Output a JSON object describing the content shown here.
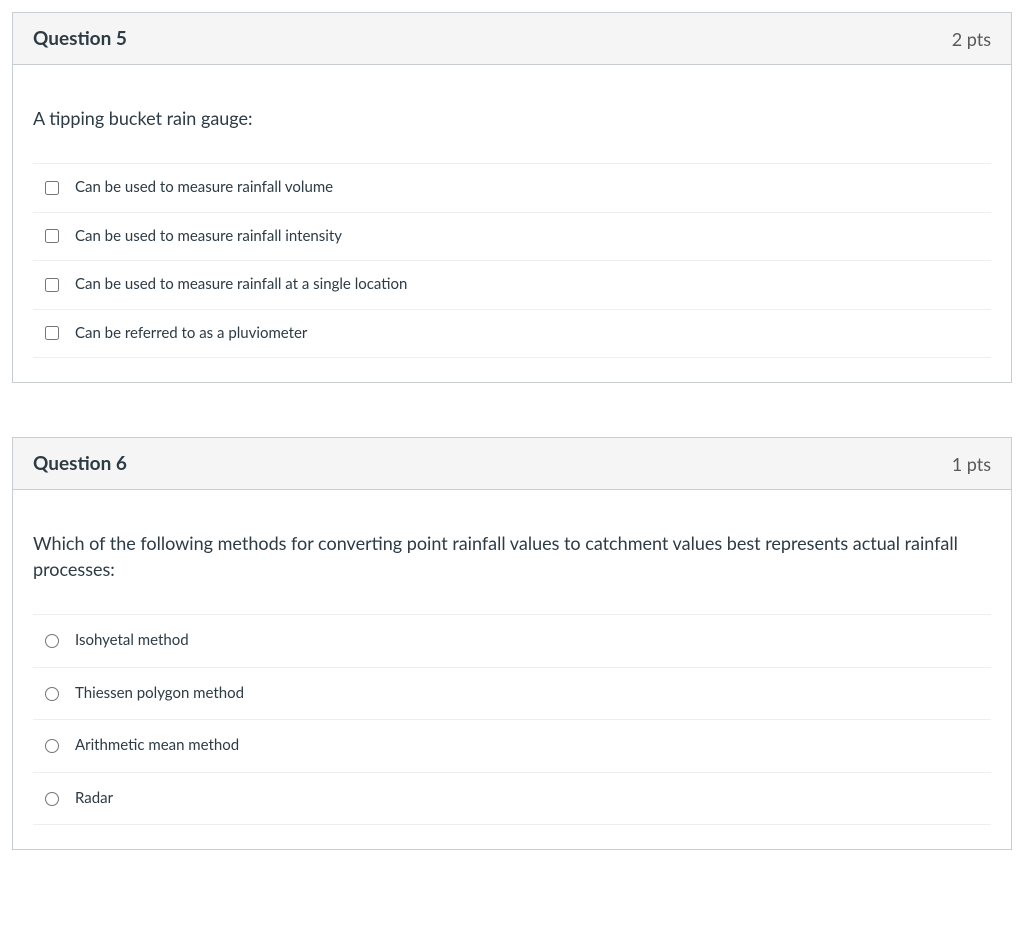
{
  "questions": [
    {
      "title": "Question 5",
      "points": "2 pts",
      "prompt": "A tipping bucket rain gauge:",
      "type": "checkbox",
      "options": [
        "Can be used to measure rainfall volume",
        "Can be used to measure rainfall intensity",
        "Can be used to measure rainfall at a single location",
        "Can be referred to as a pluviometer"
      ]
    },
    {
      "title": "Question 6",
      "points": "1 pts",
      "prompt": "Which of the following methods for converting point rainfall values to catchment values best represents actual rainfall processes:",
      "type": "radio",
      "options": [
        "Isohyetal method",
        "Thiessen polygon method",
        "Arithmetic mean method",
        "Radar"
      ]
    }
  ],
  "style": {
    "card_border_color": "#c7cdd1",
    "header_bg": "#f5f5f5",
    "text_color": "#2d3b45",
    "points_color": "#595959",
    "divider_color": "#eeeeee",
    "title_fontsize": 19,
    "prompt_fontsize": 18,
    "option_fontsize": 15
  }
}
